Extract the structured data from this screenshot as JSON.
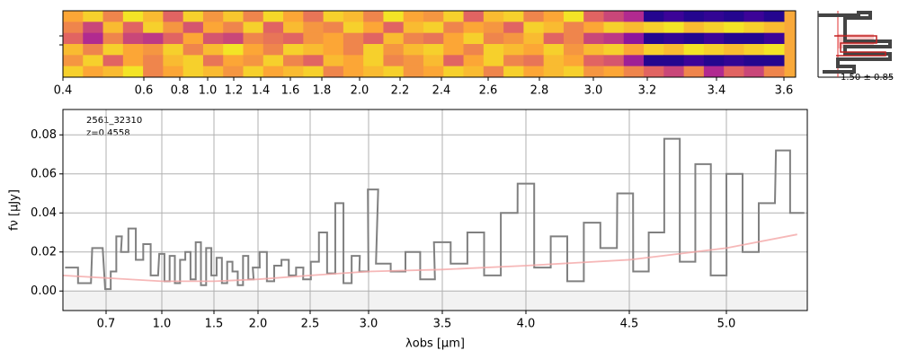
{
  "chart_data": [
    {
      "type": "heatmap",
      "xlim": [
        0.4,
        3.65
      ],
      "xticks": [
        0.4,
        0.6,
        0.8,
        {
          "value": 1.0,
          "label": "1.0"
        },
        1.2,
        1.4,
        1.6,
        1.8,
        {
          "value": 2.0,
          "label": "2.0"
        },
        2.2,
        2.4,
        2.6,
        2.8,
        {
          "value": 3.0,
          "label": "3.0"
        },
        3.2,
        3.4,
        3.6
      ],
      "annotation": "1.50 ± 0.85",
      "values": [
        [
          0.8,
          0.9,
          0.7,
          0.95,
          0.85,
          0.6,
          0.9,
          0.75,
          0.88,
          0.7,
          0.92,
          0.8,
          0.65,
          0.9,
          0.85,
          0.7,
          0.95,
          0.8,
          0.75,
          0.9,
          0.6,
          0.85,
          0.9,
          0.7,
          0.8,
          0.95,
          0.6,
          0.5,
          0.4,
          0.05,
          0.1,
          0.05,
          0.08,
          0.05,
          0.1,
          0.05
        ],
        [
          0.7,
          0.5,
          0.85,
          0.6,
          0.9,
          0.75,
          0.55,
          0.8,
          0.7,
          0.9,
          0.6,
          0.85,
          0.75,
          0.7,
          0.9,
          0.8,
          0.6,
          0.85,
          0.9,
          0.7,
          0.8,
          0.75,
          0.6,
          0.9,
          0.85,
          0.7,
          0.8,
          0.9,
          0.85,
          0.9,
          0.95,
          0.85,
          0.9,
          0.95,
          0.9,
          0.85
        ],
        [
          0.6,
          0.4,
          0.7,
          0.5,
          0.45,
          0.6,
          0.8,
          0.55,
          0.5,
          0.7,
          0.65,
          0.6,
          0.75,
          0.8,
          0.7,
          0.6,
          0.85,
          0.7,
          0.65,
          0.8,
          0.9,
          0.7,
          0.75,
          0.85,
          0.6,
          0.7,
          0.5,
          0.45,
          0.3,
          0.05,
          0.08,
          0.05,
          0.1,
          0.05,
          0.05,
          0.1
        ],
        [
          0.85,
          0.7,
          0.9,
          0.8,
          0.75,
          0.9,
          0.7,
          0.85,
          0.95,
          0.8,
          0.7,
          0.9,
          0.85,
          0.8,
          0.7,
          0.9,
          0.75,
          0.85,
          0.9,
          0.8,
          0.7,
          0.9,
          0.85,
          0.8,
          0.9,
          0.75,
          0.85,
          0.9,
          0.8,
          0.9,
          0.85,
          0.95,
          0.9,
          0.85,
          0.9,
          0.95
        ],
        [
          0.75,
          0.9,
          0.6,
          0.8,
          0.7,
          0.85,
          0.9,
          0.65,
          0.8,
          0.75,
          0.9,
          0.7,
          0.6,
          0.85,
          0.8,
          0.9,
          0.7,
          0.75,
          0.85,
          0.6,
          0.8,
          0.9,
          0.7,
          0.65,
          0.85,
          0.8,
          0.6,
          0.55,
          0.35,
          0.05,
          0.05,
          0.1,
          0.05,
          0.08,
          0.05,
          0.05
        ],
        [
          0.9,
          0.8,
          0.85,
          0.95,
          0.7,
          0.8,
          0.9,
          0.85,
          0.75,
          0.9,
          0.8,
          0.85,
          0.9,
          0.7,
          0.8,
          0.85,
          0.9,
          0.75,
          0.8,
          0.9,
          0.85,
          0.7,
          0.9,
          0.8,
          0.85,
          0.9,
          0.75,
          0.8,
          0.7,
          0.6,
          0.5,
          0.7,
          0.4,
          0.6,
          0.5,
          0.7
        ]
      ]
    },
    {
      "type": "line",
      "x_label": "λobs [μm]",
      "y_label": "fν [μJy]",
      "annotations": [
        "2561_32310",
        "z=0.4558"
      ],
      "xlim": [
        0.6,
        5.4
      ],
      "xticks": [
        0.7,
        {
          "value": 1.0,
          "label": "1.0"
        },
        1.5,
        {
          "value": 2.0,
          "label": "2.0"
        },
        2.5,
        {
          "value": 3.0,
          "label": "3.0"
        },
        3.5,
        {
          "value": 4.0,
          "label": "4.0"
        },
        4.5,
        {
          "value": 5.0,
          "label": "5.0"
        }
      ],
      "ylim": [
        -0.01,
        0.093
      ],
      "yticks": [
        {
          "value": 0,
          "label": "0.00"
        },
        {
          "value": 0.02,
          "label": "0.02"
        },
        {
          "value": 0.04,
          "label": "0.04"
        },
        {
          "value": 0.06,
          "label": "0.06"
        },
        {
          "value": 0.08,
          "label": "0.08"
        }
      ],
      "grid": true,
      "x": [
        0.62,
        0.65,
        0.68,
        0.71,
        0.74,
        0.77,
        0.8,
        0.84,
        0.88,
        0.92,
        0.96,
        1.0,
        1.05,
        1.1,
        1.15,
        1.2,
        1.25,
        1.3,
        1.35,
        1.4,
        1.45,
        1.5,
        1.56,
        1.62,
        1.68,
        1.74,
        1.8,
        1.86,
        1.92,
        1.98,
        2.05,
        2.12,
        2.19,
        2.26,
        2.33,
        2.4,
        2.47,
        2.54,
        2.61,
        2.68,
        2.75,
        2.82,
        2.89,
        2.96,
        3.03,
        3.1,
        3.2,
        3.3,
        3.4,
        3.5,
        3.6,
        3.7,
        3.8,
        3.9,
        4.0,
        4.08,
        4.16,
        4.24,
        4.32,
        4.4,
        4.48,
        4.56,
        4.64,
        4.72,
        4.8,
        4.88,
        4.96,
        5.04,
        5.12,
        5.2,
        5.28,
        5.35
      ],
      "series": [
        {
          "color": "#808080",
          "values": [
            0.012,
            0.004,
            0.022,
            0.001,
            0.01,
            0.028,
            0.02,
            0.032,
            0.016,
            0.024,
            0.008,
            0.019,
            0.005,
            0.018,
            0.004,
            0.016,
            0.02,
            0.006,
            0.025,
            0.003,
            0.022,
            0.008,
            0.017,
            0.004,
            0.015,
            0.01,
            0.003,
            0.018,
            0.006,
            0.012,
            0.02,
            0.005,
            0.013,
            0.016,
            0.008,
            0.012,
            0.006,
            0.015,
            0.03,
            0.009,
            0.045,
            0.004,
            0.018,
            0.01,
            0.052,
            0.014,
            0.01,
            0.02,
            0.006,
            0.025,
            0.014,
            0.03,
            0.008,
            0.04,
            0.055,
            0.012,
            0.028,
            0.005,
            0.035,
            0.022,
            0.05,
            0.01,
            0.03,
            0.078,
            0.015,
            0.065,
            0.008,
            0.06,
            0.02,
            0.045,
            0.072,
            0.04
          ]
        },
        {
          "color": "#f4a6a6",
          "x": [
            0.6,
            1.0,
            1.5,
            2.0,
            2.5,
            3.0,
            3.5,
            4.0,
            4.5,
            5.0,
            5.35
          ],
          "values": [
            0.008,
            0.005,
            0.005,
            0.006,
            0.008,
            0.01,
            0.011,
            0.013,
            0.016,
            0.022,
            0.029
          ]
        }
      ]
    }
  ]
}
